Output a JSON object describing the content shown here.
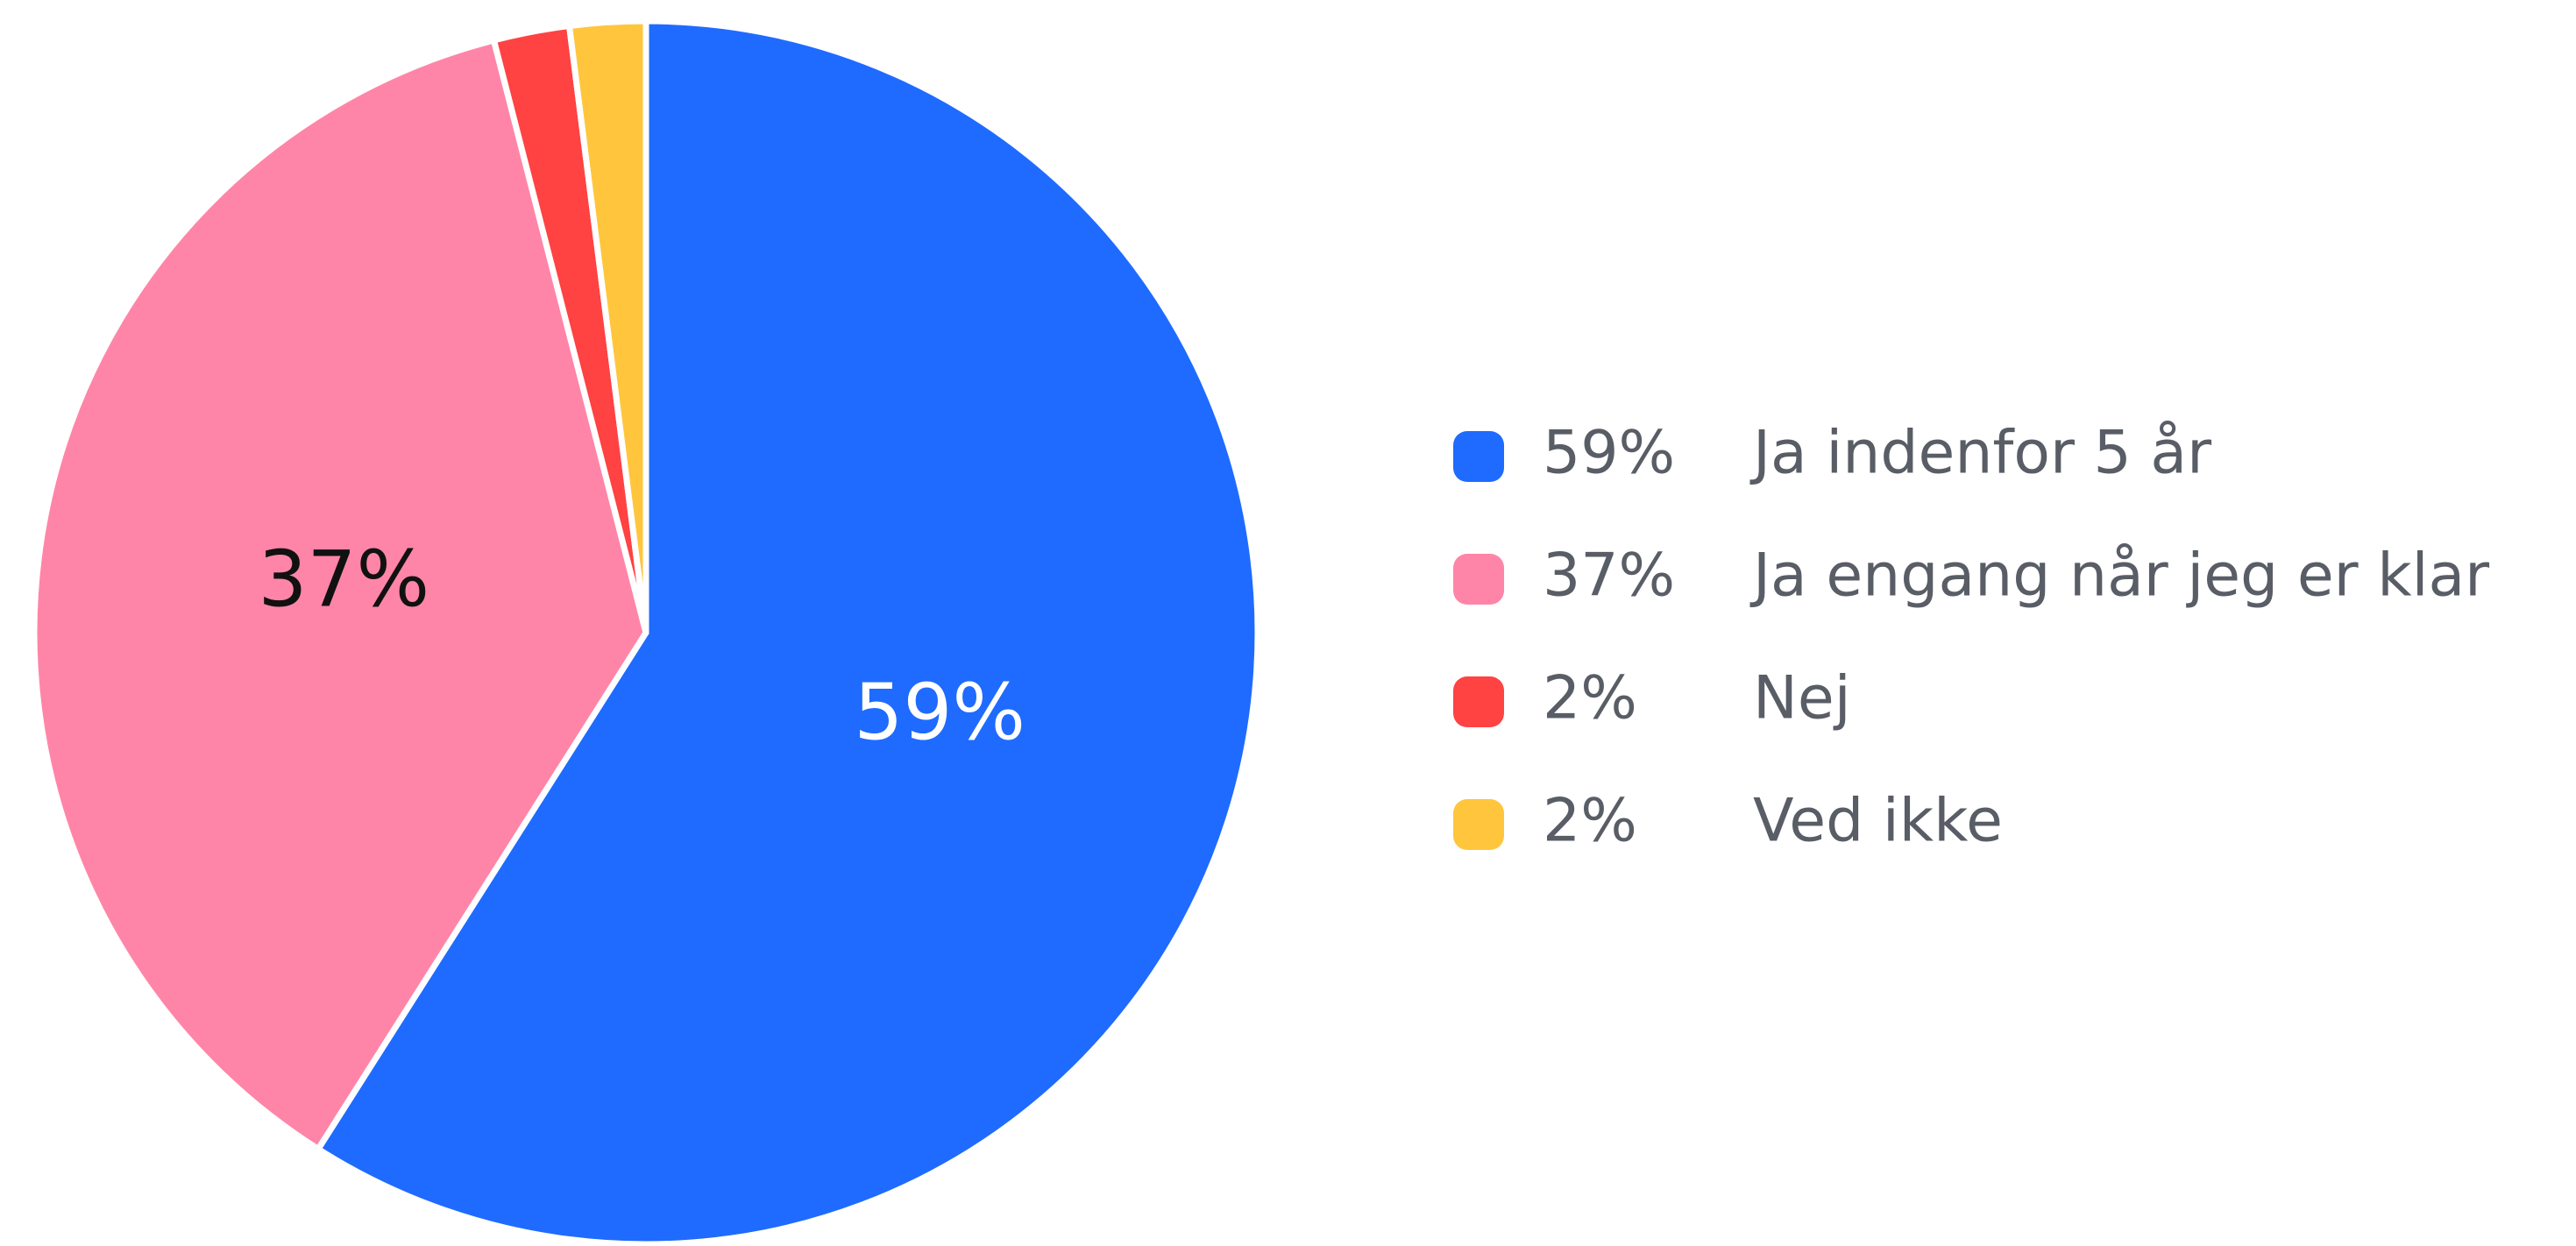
{
  "chart_data": {
    "type": "pie",
    "categories": [
      "Ja indenfor 5 år",
      "Ja engang når jeg er klar",
      "Nej",
      "Ved ikke"
    ],
    "values": [
      59,
      37,
      2,
      2
    ],
    "value_labels": [
      "59%",
      "37%",
      "2%",
      "2%"
    ],
    "colors": [
      "#1f6bff",
      "#ff85a8",
      "#ff4242",
      "#ffc63d"
    ],
    "legend": "right"
  }
}
